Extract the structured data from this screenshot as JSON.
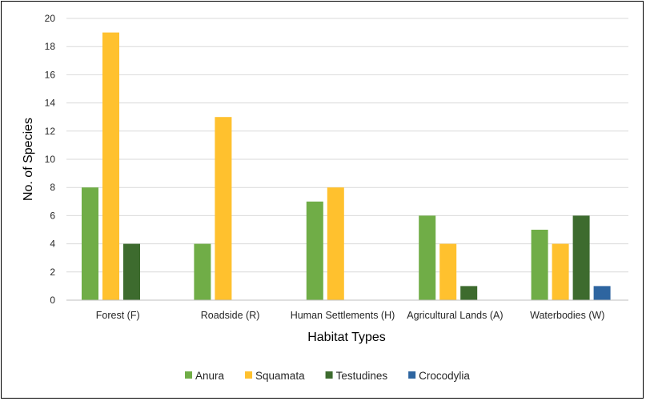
{
  "chart_data": {
    "type": "bar",
    "title": "",
    "xlabel": "Habitat Types",
    "ylabel": "No. of Species",
    "categories": [
      "Forest (F)",
      "Roadside (R)",
      "Human Settlements (H)",
      "Agricultural Lands (A)",
      "Waterbodies (W)"
    ],
    "series": [
      {
        "name": "Anura",
        "color": "#70ad47",
        "values": [
          8,
          4,
          7,
          6,
          5
        ]
      },
      {
        "name": "Squamata",
        "color": "#ffc12e",
        "values": [
          19,
          13,
          8,
          4,
          4
        ]
      },
      {
        "name": "Testudines",
        "color": "#3d6b2e",
        "values": [
          4,
          0,
          0,
          1,
          6
        ]
      },
      {
        "name": "Crocodylia",
        "color": "#2e65a0",
        "values": [
          0,
          0,
          0,
          0,
          1
        ]
      }
    ],
    "ylim": [
      0,
      20
    ],
    "yticks": [
      0,
      2,
      4,
      6,
      8,
      10,
      12,
      14,
      16,
      18,
      20
    ],
    "grid": true,
    "legend_position": "bottom"
  }
}
